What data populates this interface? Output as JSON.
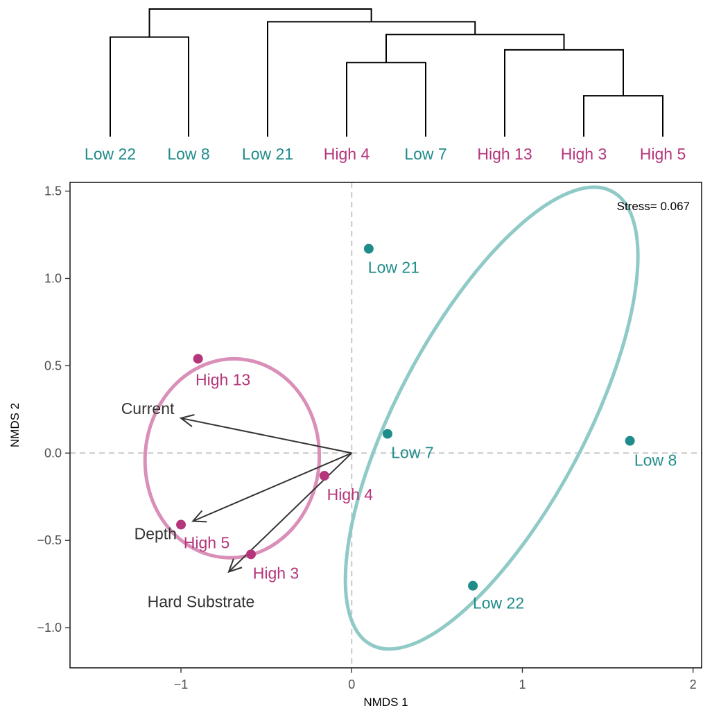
{
  "chart_data": {
    "type": "scatter",
    "title": "",
    "xlabel": "NMDS 1",
    "ylabel": "NMDS 2",
    "xlim": [
      -1.65,
      2.05
    ],
    "ylim": [
      -1.23,
      1.55
    ],
    "x_ticks": [
      -1,
      0,
      1,
      2
    ],
    "x_tick_labels": [
      "−1",
      "0",
      "1",
      "2"
    ],
    "y_ticks": [
      -1.0,
      -0.5,
      0.0,
      0.5,
      1.0,
      1.5
    ],
    "y_tick_labels": [
      "−1.0",
      "−0.5",
      "0.0",
      "0.5",
      "1.0",
      "1.5"
    ],
    "grid": false,
    "annotation": "Stress= 0.067",
    "colors": {
      "High": "#b5357b",
      "Low": "#1f8c8a",
      "ellipse_high": "#d98fb8",
      "ellipse_low": "#8fcac7",
      "arrow": "#333333",
      "refline": "#c8c8c8"
    },
    "points": [
      {
        "label": "Low 21",
        "group": "Low",
        "x": 0.1,
        "y": 1.17
      },
      {
        "label": "High 13",
        "group": "High",
        "x": -0.9,
        "y": 0.54
      },
      {
        "label": "Low 7",
        "group": "Low",
        "x": 0.21,
        "y": 0.11
      },
      {
        "label": "Low 8",
        "group": "Low",
        "x": 1.63,
        "y": 0.07
      },
      {
        "label": "High 4",
        "group": "High",
        "x": -0.16,
        "y": -0.13
      },
      {
        "label": "High 5",
        "group": "High",
        "x": -1.0,
        "y": -0.41
      },
      {
        "label": "High 3",
        "group": "High",
        "x": -0.59,
        "y": -0.58
      },
      {
        "label": "Low 22",
        "group": "Low",
        "x": 0.71,
        "y": -0.76
      }
    ],
    "ellipses": [
      {
        "group": "High",
        "cx": -0.7,
        "cy": -0.03,
        "rx": 0.51,
        "ry": 0.57,
        "angle": 5
      },
      {
        "group": "Low",
        "cx": 0.82,
        "cy": 0.2,
        "rx": 0.55,
        "ry": 1.47,
        "angle": 28
      }
    ],
    "vectors": [
      {
        "label": "Current",
        "x": -1.0,
        "y": 0.2
      },
      {
        "label": "Depth",
        "x": -0.93,
        "y": -0.39
      },
      {
        "label": "Hard Substrate",
        "x": -0.72,
        "y": -0.68
      }
    ],
    "dendrogram": {
      "leaves": [
        {
          "label": "Low 22",
          "group": "Low"
        },
        {
          "label": "Low 8",
          "group": "Low"
        },
        {
          "label": "Low 21",
          "group": "Low"
        },
        {
          "label": "High 4",
          "group": "High"
        },
        {
          "label": "Low 7",
          "group": "Low"
        },
        {
          "label": "High 13",
          "group": "High"
        },
        {
          "label": "High 3",
          "group": "High"
        },
        {
          "label": "High 5",
          "group": "High"
        }
      ],
      "merges": [
        {
          "a": 0,
          "b": 1,
          "height": 0.78
        },
        {
          "a": 3,
          "b": 4,
          "height": 0.58
        },
        {
          "a": 6,
          "b": 7,
          "height": 0.32
        },
        {
          "a": 5,
          "b": 10,
          "height": 0.68
        },
        {
          "a": 9,
          "b": 11,
          "height": 0.8
        },
        {
          "a": 2,
          "b": 12,
          "height": 0.9
        },
        {
          "a": 8,
          "b": 13,
          "height": 1.0
        }
      ]
    }
  }
}
